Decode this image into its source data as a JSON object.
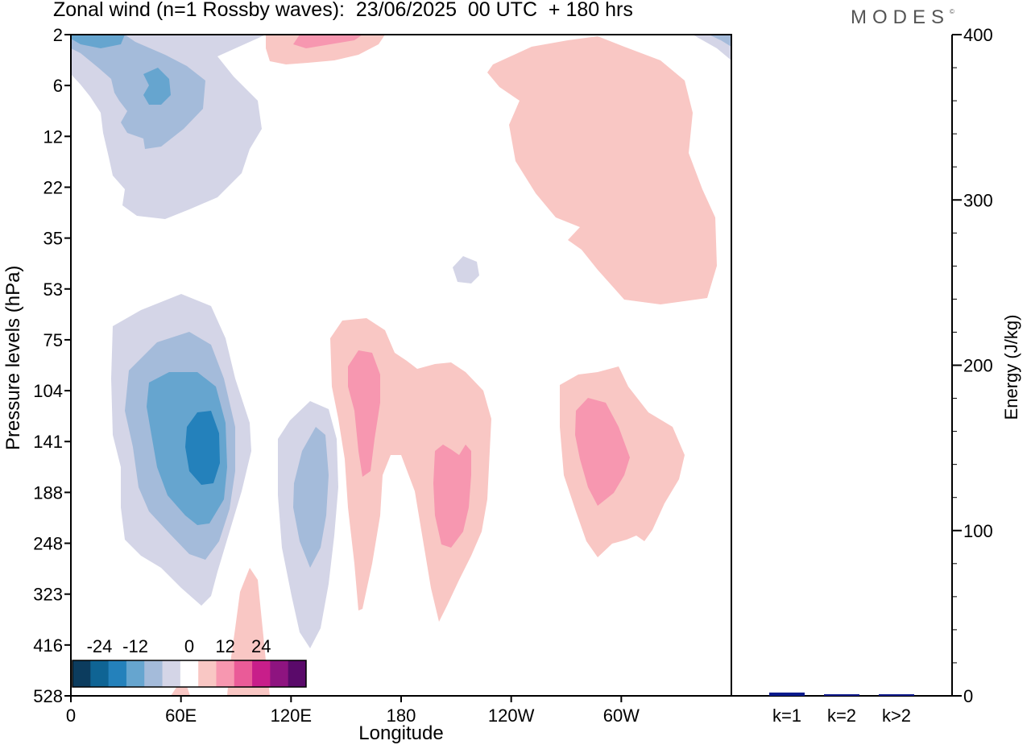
{
  "header": {
    "title": "Zonal wind (n=1 Rossby waves):  23/06/2025  00 UTC  + 180 hrs",
    "logo": "MODES",
    "logo_mark": "©"
  },
  "chart_data": [
    {
      "type": "heatmap",
      "title": "Zonal wind (n=1 Rossby waves):  23/06/2025  00 UTC  + 180 hrs",
      "xlabel": "Longitude",
      "ylabel": "Pressure levels (hPa)",
      "x_range_deg_east": [
        0,
        360
      ],
      "x_ticks": [
        {
          "label": "0",
          "deg": 0
        },
        {
          "label": "60E",
          "deg": 60
        },
        {
          "label": "120E",
          "deg": 120
        },
        {
          "label": "180",
          "deg": 180
        },
        {
          "label": "120W",
          "deg": 240
        },
        {
          "label": "60W",
          "deg": 300
        }
      ],
      "y_levels_hpa": [
        2,
        6,
        12,
        22,
        35,
        53,
        75,
        104,
        141,
        188,
        248,
        323,
        416,
        528
      ],
      "y_scale": "pressure levels, top to bottom",
      "colorbar": {
        "tick_labels": [
          "-24",
          "-12",
          "0",
          "12",
          "24"
        ],
        "bounds": [
          -30,
          -24,
          -18,
          -12,
          -6,
          -3,
          3,
          6,
          12,
          18,
          24,
          30
        ],
        "colors": [
          "#0c3c5e",
          "#0f6494",
          "#2481bb",
          "#66a5cf",
          "#a4bbda",
          "#d4d5e7",
          "#ffffff",
          "#f9c7c4",
          "#f797b0",
          "#ea5b98",
          "#c81e8a",
          "#8e1480",
          "#5a0a6a"
        ]
      },
      "anomalies": [
        {
          "lon_deg": 18,
          "level_hpa": 2,
          "sign": "negative",
          "value": -10
        },
        {
          "lon_deg": 42,
          "level_hpa": 6,
          "sign": "negative",
          "value": -12
        },
        {
          "lon_deg": 110,
          "level_hpa": 2,
          "sign": "positive",
          "value": 8
        },
        {
          "lon_deg": 260,
          "level_hpa": 22,
          "sign": "positive",
          "value": 4
        },
        {
          "lon_deg": 214,
          "level_hpa": 38,
          "sign": "negative",
          "value": -4
        },
        {
          "lon_deg": 65,
          "level_hpa": 141,
          "sign": "negative",
          "value": -20
        },
        {
          "lon_deg": 124,
          "level_hpa": 188,
          "sign": "negative",
          "value": -8
        },
        {
          "lon_deg": 160,
          "level_hpa": 120,
          "sign": "positive",
          "value": 10
        },
        {
          "lon_deg": 210,
          "level_hpa": 188,
          "sign": "positive",
          "value": 10
        },
        {
          "lon_deg": 288,
          "level_hpa": 141,
          "sign": "positive",
          "value": 10
        },
        {
          "lon_deg": 95,
          "level_hpa": 416,
          "sign": "positive",
          "value": 4
        }
      ]
    },
    {
      "type": "bar",
      "ylabel": "Energy (J/kg)",
      "categories": [
        "k=1",
        "k=2",
        "k>2"
      ],
      "values": [
        2,
        0.5,
        0.8
      ],
      "ylim": [
        0,
        400
      ],
      "y_ticks": [
        0,
        100,
        200,
        300,
        400
      ],
      "bar_color": "#0a1a8c"
    }
  ]
}
